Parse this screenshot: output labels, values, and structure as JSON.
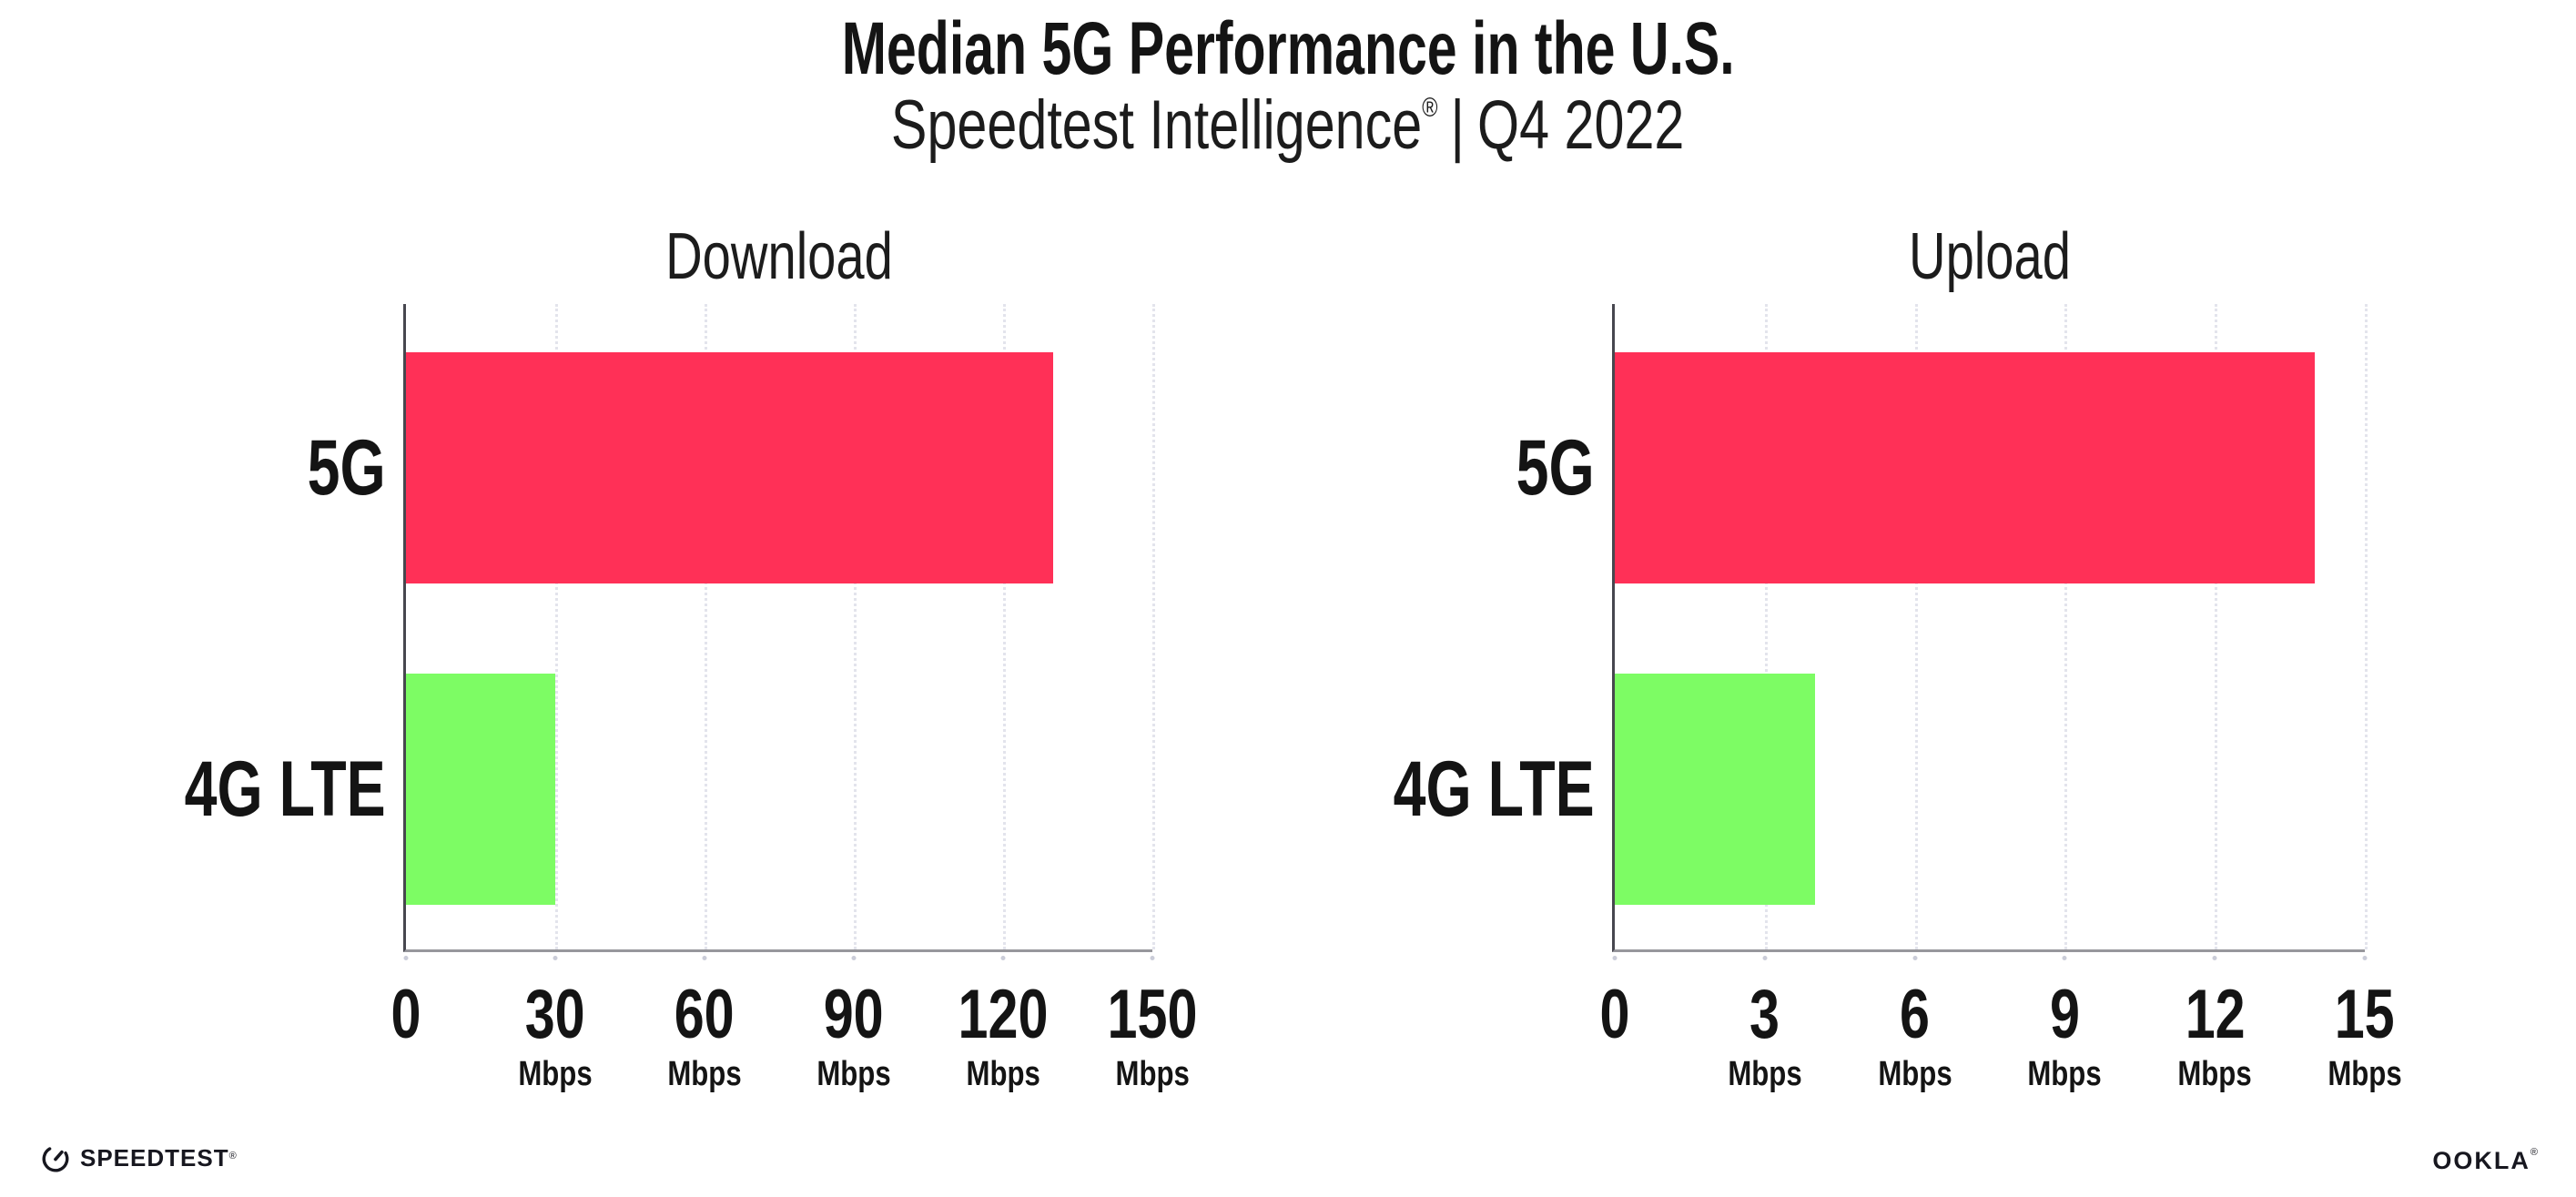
{
  "header": {
    "title": "Median 5G Performance in the U.S.",
    "subtitle": {
      "brand": "Speedtest Intelligence",
      "registered_mark": "®",
      "separator": "|",
      "period": "Q4 2022"
    }
  },
  "chart_data": [
    {
      "type": "bar",
      "orientation": "horizontal",
      "title": "Download",
      "categories": [
        "5G",
        "4G LTE"
      ],
      "values": [
        130,
        30
      ],
      "unit": "Mbps",
      "xlabel": "",
      "ylabel": "",
      "xlim": [
        0,
        150
      ],
      "xticks": [
        0,
        30,
        60,
        90,
        120,
        150
      ],
      "bar_colors": [
        "#ff3057",
        "#7dfc64"
      ],
      "grid": "vertical-dotted",
      "legend": "none"
    },
    {
      "type": "bar",
      "orientation": "horizontal",
      "title": "Upload",
      "categories": [
        "5G",
        "4G LTE"
      ],
      "values": [
        14,
        4
      ],
      "unit": "Mbps",
      "xlabel": "",
      "ylabel": "",
      "xlim": [
        0,
        15
      ],
      "xticks": [
        0,
        3,
        6,
        9,
        12,
        15
      ],
      "bar_colors": [
        "#ff3057",
        "#7dfc64"
      ],
      "grid": "vertical-dotted",
      "legend": "none"
    }
  ],
  "footer": {
    "speedtest": {
      "label": "SPEEDTEST",
      "mark": "®"
    },
    "ookla": {
      "label": "OOKLA",
      "mark": "®"
    }
  },
  "colors": {
    "bar_5g": "#ff3057",
    "bar_4g_lte": "#7dfc64",
    "axis_y": "#47474f",
    "axis_x": "#97979c",
    "gridline": "#e3e4ec",
    "text": "#141414"
  }
}
